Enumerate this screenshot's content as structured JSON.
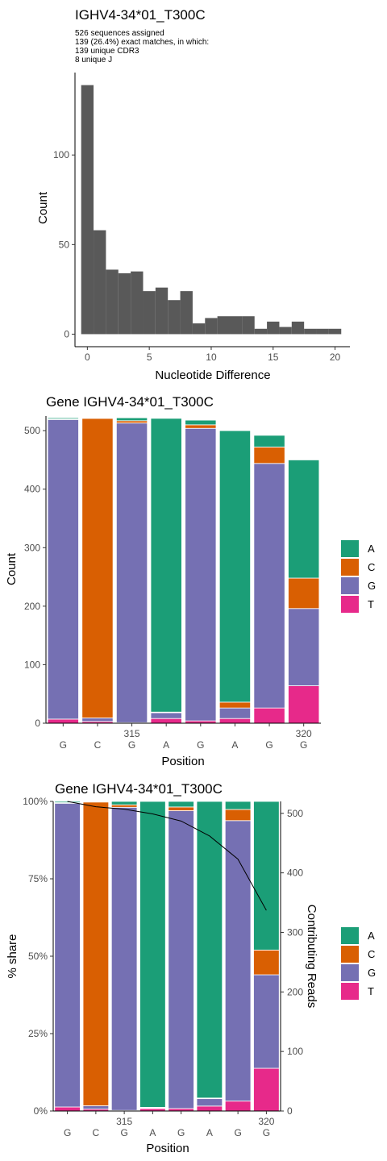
{
  "colors": {
    "A": "#1b9e77",
    "C": "#d95f02",
    "G": "#7570b3",
    "T": "#e7298a",
    "hist": "#595959"
  },
  "histogram": {
    "title": "IGHV4-34*01_T300C",
    "subtitle": [
      "526 sequences assigned",
      "139 (26.4%) exact matches, in which:",
      "139 unique CDR3",
      "8 unique J"
    ],
    "xlabel": "Nucleotide Difference",
    "ylabel": "Count",
    "x_ticks": [
      0,
      5,
      10,
      15,
      20
    ],
    "y_ticks": [
      0,
      50,
      100
    ],
    "xlim": [
      -1,
      21.2
    ],
    "ylim": [
      -7,
      146
    ]
  },
  "chart_data": [
    {
      "type": "bar",
      "title": "IGHV4-34*01_T300C",
      "xlabel": "Nucleotide Difference",
      "ylabel": "Count",
      "x": [
        0,
        1,
        2,
        3,
        4,
        5,
        6,
        7,
        8,
        9,
        10,
        11,
        12,
        13,
        14,
        15,
        16,
        17,
        18,
        19,
        20
      ],
      "values": [
        139,
        58,
        36,
        34,
        35,
        24,
        26,
        19,
        24,
        6,
        9,
        10,
        10,
        10,
        3,
        7,
        4,
        7,
        3,
        3,
        3
      ],
      "ylim": [
        0,
        146
      ],
      "grid": false
    },
    {
      "type": "bar",
      "stacked": true,
      "title": "Gene IGHV4-34*01_T300C",
      "xlabel": "Position",
      "ylabel": "Count",
      "categories": [
        "G",
        "C",
        "G",
        "A",
        "G",
        "A",
        "G",
        "G"
      ],
      "positions": [
        313,
        314,
        315,
        316,
        317,
        318,
        319,
        320
      ],
      "x_tick_labels": [
        "",
        "",
        "315",
        "",
        "",
        "",
        "",
        "320"
      ],
      "y_ticks": [
        0,
        100,
        200,
        300,
        400,
        500
      ],
      "ylim": [
        0,
        525
      ],
      "series": [
        {
          "name": "T",
          "values": [
            7,
            3,
            1,
            8,
            4,
            8,
            26,
            64
          ]
        },
        {
          "name": "G",
          "values": [
            512,
            6,
            512,
            10,
            500,
            18,
            418,
            132
          ]
        },
        {
          "name": "C",
          "values": [
            1,
            512,
            4,
            1,
            6,
            10,
            28,
            52
          ]
        },
        {
          "name": "A",
          "values": [
            2,
            1,
            5,
            502,
            8,
            464,
            20,
            202
          ]
        }
      ],
      "legend": [
        "A",
        "C",
        "G",
        "T"
      ],
      "legend_position": "right",
      "grid": false
    },
    {
      "type": "bar",
      "stacked": true,
      "title": "Gene IGHV4-34*01_T300C",
      "xlabel": "Position",
      "ylabel": "% share",
      "y2label": "Contributing Reads",
      "categories": [
        "G",
        "C",
        "G",
        "A",
        "G",
        "A",
        "G",
        "G"
      ],
      "positions": [
        313,
        314,
        315,
        316,
        317,
        318,
        319,
        320
      ],
      "x_tick_labels": [
        "",
        "",
        "315",
        "",
        "",
        "",
        "",
        "320"
      ],
      "y_ticks": [
        "0%",
        "25%",
        "50%",
        "75%",
        "100%"
      ],
      "y2_ticks": [
        0,
        100,
        200,
        300,
        400,
        500
      ],
      "ylim": [
        0,
        1
      ],
      "y2lim": [
        0,
        520
      ],
      "series": [
        {
          "name": "T",
          "values": [
            0.013,
            0.006,
            0.002,
            0.008,
            0.008,
            0.016,
            0.032,
            0.138
          ]
        },
        {
          "name": "G",
          "values": [
            0.981,
            0.011,
            0.979,
            0.002,
            0.962,
            0.024,
            0.906,
            0.302
          ]
        },
        {
          "name": "C",
          "values": [
            0.002,
            0.981,
            0.008,
            0.002,
            0.012,
            0.002,
            0.036,
            0.08
          ]
        },
        {
          "name": "A",
          "values": [
            0.004,
            0.002,
            0.011,
            0.988,
            0.018,
            0.958,
            0.026,
            0.48
          ]
        }
      ],
      "line": {
        "name": "Contributing Reads",
        "values": [
          520,
          511,
          507,
          499,
          487,
          462,
          423,
          337
        ]
      },
      "legend": [
        "A",
        "C",
        "G",
        "T"
      ],
      "legend_position": "right",
      "grid": false
    }
  ],
  "panel2": {
    "title": "Gene IGHV4-34*01_T300C",
    "xlabel": "Position",
    "ylabel": "Count",
    "y_ticks": [
      "0",
      "100",
      "200",
      "300",
      "400",
      "500"
    ],
    "x_tick_labels": [
      "",
      "",
      "315",
      "",
      "",
      "",
      "",
      "320"
    ],
    "categories": [
      "G",
      "C",
      "G",
      "A",
      "G",
      "A",
      "G",
      "G"
    ],
    "legend": [
      "A",
      "C",
      "G",
      "T"
    ]
  },
  "panel3": {
    "title": "Gene IGHV4-34*01_T300C",
    "xlabel": "Position",
    "ylabel": "% share",
    "y2label": "Contributing Reads",
    "y_ticks": [
      "0%",
      "25%",
      "50%",
      "75%",
      "100%"
    ],
    "y2_ticks": [
      "0",
      "100",
      "200",
      "300",
      "400",
      "500"
    ],
    "x_tick_labels": [
      "",
      "",
      "315",
      "",
      "",
      "",
      "",
      "320"
    ],
    "categories": [
      "G",
      "C",
      "G",
      "A",
      "G",
      "A",
      "G",
      "G"
    ],
    "legend": [
      "A",
      "C",
      "G",
      "T"
    ]
  }
}
